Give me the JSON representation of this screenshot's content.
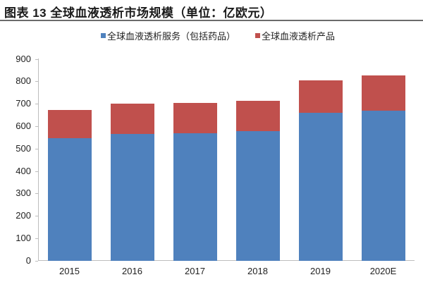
{
  "header": {
    "title": "图表 13  全球血液透析市场规模（单位：亿欧元）"
  },
  "colors": {
    "services": "#4f81bd",
    "products": "#c0504d"
  },
  "legend": [
    {
      "label": "全球血液透析服务（包括药品）",
      "color": "#4f81bd"
    },
    {
      "label": "全球血液透析产品",
      "color": "#c0504d"
    }
  ],
  "chart_data": {
    "type": "bar",
    "stacked": true,
    "title": "图表 13  全球血液透析市场规模（单位：亿欧元）",
    "xlabel": "",
    "ylabel": "",
    "categories": [
      "2015",
      "2016",
      "2017",
      "2018",
      "2019",
      "2020E"
    ],
    "series": [
      {
        "name": "全球血液透析服务（包括药品）",
        "color": "#4f81bd",
        "values": [
          547,
          565,
          568,
          578,
          659,
          669
        ]
      },
      {
        "name": "全球血液透析产品",
        "color": "#c0504d",
        "values": [
          125,
          136,
          136,
          136,
          146,
          157
        ]
      }
    ],
    "totals": [
      672,
      701,
      704,
      714,
      805,
      826
    ],
    "ylim": [
      0,
      900
    ],
    "yticks": [
      0,
      100,
      200,
      300,
      400,
      500,
      600,
      700,
      800,
      900
    ],
    "grid": false,
    "legend_position": "top"
  }
}
